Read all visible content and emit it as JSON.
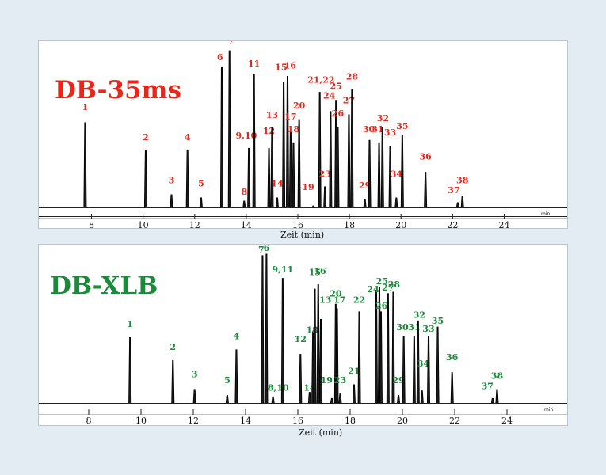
{
  "chart_data": [
    {
      "type": "line",
      "title": "DB-35ms",
      "title_color": "#e8271a",
      "label_color": "#e8271a",
      "xlabel": "Zeit (min)",
      "unit_label": "min",
      "xlim": [
        7.0,
        25.0
      ],
      "x_ticks": [
        8,
        10,
        12,
        14,
        16,
        18,
        20,
        22,
        24
      ],
      "x_tick_labels": [
        "8",
        "10",
        "12",
        "14",
        "16",
        "18",
        "20",
        "22",
        "24"
      ],
      "series": [
        {
          "peaks": [
            {
              "x": 7.75,
              "h": 0.53,
              "label": "1",
              "lx": 7.75,
              "lh": 0.61
            },
            {
              "x": 10.1,
              "h": 0.36,
              "label": "2",
              "lx": 10.1,
              "lh": 0.42
            },
            {
              "x": 11.1,
              "h": 0.08,
              "label": "3",
              "lx": 11.1,
              "lh": 0.15
            },
            {
              "x": 11.72,
              "h": 0.36,
              "label": "4",
              "lx": 11.72,
              "lh": 0.42
            },
            {
              "x": 12.25,
              "h": 0.06,
              "label": "5",
              "lx": 12.25,
              "lh": 0.13
            },
            {
              "x": 13.05,
              "h": 0.88,
              "label": "6",
              "lx": 12.98,
              "lh": 0.92
            },
            {
              "x": 13.35,
              "h": 0.98,
              "label": "7",
              "lx": 13.4,
              "lh": 1.02
            },
            {
              "x": 13.92,
              "h": 0.04,
              "label": "8",
              "lx": 13.92,
              "lh": 0.08
            },
            {
              "x": 14.1,
              "h": 0.37,
              "label": "9,10",
              "lx": 14.0,
              "lh": 0.43
            },
            {
              "x": 14.3,
              "h": 0.83,
              "label": "11",
              "lx": 14.3,
              "lh": 0.88
            },
            {
              "x": 14.88,
              "h": 0.37,
              "label": "12",
              "lx": 14.88,
              "lh": 0.46
            },
            {
              "x": 15.0,
              "h": 0.5,
              "label": "13",
              "lx": 15.0,
              "lh": 0.56
            },
            {
              "x": 15.2,
              "h": 0.06,
              "label": "14",
              "lx": 15.2,
              "lh": 0.13
            },
            {
              "x": 15.45,
              "h": 0.78,
              "label": "15",
              "lx": 15.35,
              "lh": 0.86
            },
            {
              "x": 15.6,
              "h": 0.82,
              "label": "16",
              "lx": 15.7,
              "lh": 0.87
            },
            {
              "x": 15.72,
              "h": 0.48,
              "label": "17",
              "lx": 15.72,
              "lh": 0.55
            },
            {
              "x": 15.83,
              "h": 0.4,
              "label": "18",
              "lx": 15.83,
              "lh": 0.47
            },
            {
              "x": 16.05,
              "h": 0.55,
              "label": "20",
              "lx": 16.05,
              "lh": 0.62
            },
            {
              "x": 16.6,
              "h": 0.01,
              "label": "19",
              "lx": 16.4,
              "lh": 0.11
            },
            {
              "x": 16.85,
              "h": 0.72,
              "label": "21,22",
              "lx": 16.9,
              "lh": 0.78
            },
            {
              "x": 17.05,
              "h": 0.13,
              "label": "23",
              "lx": 17.05,
              "lh": 0.19
            },
            {
              "x": 17.27,
              "h": 0.6,
              "label": "24",
              "lx": 17.22,
              "lh": 0.68
            },
            {
              "x": 17.48,
              "h": 0.67,
              "label": "25",
              "lx": 17.48,
              "lh": 0.74
            },
            {
              "x": 17.55,
              "h": 0.5,
              "label": "26",
              "lx": 17.55,
              "lh": 0.57
            },
            {
              "x": 17.98,
              "h": 0.58,
              "label": "27",
              "lx": 17.98,
              "lh": 0.65
            },
            {
              "x": 18.1,
              "h": 0.74,
              "label": "28",
              "lx": 18.1,
              "lh": 0.8
            },
            {
              "x": 18.6,
              "h": 0.05,
              "label": "29",
              "lx": 18.6,
              "lh": 0.12
            },
            {
              "x": 18.78,
              "h": 0.42,
              "label": "30",
              "lx": 18.75,
              "lh": 0.47
            },
            {
              "x": 19.15,
              "h": 0.4,
              "label": "31",
              "lx": 19.1,
              "lh": 0.47
            },
            {
              "x": 19.28,
              "h": 0.5,
              "label": "32",
              "lx": 19.3,
              "lh": 0.54
            },
            {
              "x": 19.58,
              "h": 0.38,
              "label": "33",
              "lx": 19.58,
              "lh": 0.45
            },
            {
              "x": 19.82,
              "h": 0.06,
              "label": "34",
              "lx": 19.82,
              "lh": 0.19
            },
            {
              "x": 20.05,
              "h": 0.45,
              "label": "35",
              "lx": 20.05,
              "lh": 0.49
            },
            {
              "x": 20.95,
              "h": 0.22,
              "label": "36",
              "lx": 20.95,
              "lh": 0.3
            },
            {
              "x": 22.2,
              "h": 0.03,
              "label": "37",
              "lx": 22.05,
              "lh": 0.09
            },
            {
              "x": 22.38,
              "h": 0.07,
              "label": "38",
              "lx": 22.38,
              "lh": 0.15
            }
          ]
        }
      ]
    },
    {
      "type": "line",
      "title": "DB-XLB",
      "title_color": "#1b8a3a",
      "label_color": "#1b8a3a",
      "xlabel": "Zeit (min)",
      "unit_label": "min",
      "xlim": [
        7.0,
        25.0
      ],
      "x_ticks": [
        8,
        10,
        12,
        14,
        16,
        18,
        20,
        22,
        24
      ],
      "x_tick_labels": [
        "8",
        "10",
        "12",
        "14",
        "16",
        "18",
        "20",
        "22",
        "24"
      ],
      "series": [
        {
          "peaks": [
            {
              "x": 9.58,
              "h": 0.43,
              "label": "1",
              "lx": 9.58,
              "lh": 0.5
            },
            {
              "x": 11.22,
              "h": 0.28,
              "label": "2",
              "lx": 11.22,
              "lh": 0.35
            },
            {
              "x": 12.05,
              "h": 0.09,
              "label": "3",
              "lx": 12.05,
              "lh": 0.17
            },
            {
              "x": 13.3,
              "h": 0.05,
              "label": "5",
              "lx": 13.3,
              "lh": 0.13
            },
            {
              "x": 13.65,
              "h": 0.35,
              "label": "4",
              "lx": 13.65,
              "lh": 0.42
            },
            {
              "x": 14.65,
              "h": 0.97,
              "label": "7",
              "lx": 14.6,
              "lh": 0.99
            },
            {
              "x": 14.8,
              "h": 0.98,
              "label": "6",
              "lx": 14.8,
              "lh": 1.0
            },
            {
              "x": 15.05,
              "h": 0.04,
              "label": "8,10",
              "lx": 15.25,
              "lh": 0.08
            },
            {
              "x": 15.42,
              "h": 0.82,
              "label": "9,11",
              "lx": 15.42,
              "lh": 0.86
            },
            {
              "x": 16.1,
              "h": 0.32,
              "label": "12",
              "lx": 16.1,
              "lh": 0.4
            },
            {
              "x": 16.45,
              "h": 0.07,
              "label": "14",
              "lx": 16.45,
              "lh": 0.08
            },
            {
              "x": 16.58,
              "h": 0.47,
              "label": "18",
              "lx": 16.55,
              "lh": 0.46
            },
            {
              "x": 16.65,
              "h": 0.75,
              "label": "15",
              "lx": 16.65,
              "lh": 0.84
            },
            {
              "x": 16.78,
              "h": 0.78,
              "label": "16",
              "lx": 16.85,
              "lh": 0.85
            },
            {
              "x": 16.88,
              "h": 0.55,
              "label": "13",
              "lx": 17.05,
              "lh": 0.66
            },
            {
              "x": 17.3,
              "h": 0.03,
              "label": "19",
              "lx": 17.1,
              "lh": 0.13
            },
            {
              "x": 17.45,
              "h": 0.65,
              "label": "20",
              "lx": 17.45,
              "lh": 0.7
            },
            {
              "x": 17.5,
              "h": 0.62,
              "label": "17",
              "lx": 17.6,
              "lh": 0.66
            },
            {
              "x": 17.62,
              "h": 0.06,
              "label": "23",
              "lx": 17.62,
              "lh": 0.13
            },
            {
              "x": 18.15,
              "h": 0.12,
              "label": "21",
              "lx": 18.15,
              "lh": 0.19
            },
            {
              "x": 18.35,
              "h": 0.6,
              "label": "22",
              "lx": 18.35,
              "lh": 0.66
            },
            {
              "x": 19.0,
              "h": 0.74,
              "label": "24",
              "lx": 18.88,
              "lh": 0.73
            },
            {
              "x": 19.12,
              "h": 0.76,
              "label": "25",
              "lx": 19.22,
              "lh": 0.78
            },
            {
              "x": 19.18,
              "h": 0.6,
              "label": "26",
              "lx": 19.2,
              "lh": 0.62
            },
            {
              "x": 19.45,
              "h": 0.72,
              "label": "27",
              "lx": 19.45,
              "lh": 0.74
            },
            {
              "x": 19.65,
              "h": 0.73,
              "label": "28",
              "lx": 19.68,
              "lh": 0.76
            },
            {
              "x": 19.85,
              "h": 0.05,
              "label": "29",
              "lx": 19.85,
              "lh": 0.13
            },
            {
              "x": 20.05,
              "h": 0.44,
              "label": "30",
              "lx": 20.0,
              "lh": 0.48
            },
            {
              "x": 20.45,
              "h": 0.44,
              "label": "31",
              "lx": 20.45,
              "lh": 0.48
            },
            {
              "x": 20.6,
              "h": 0.54,
              "label": "32",
              "lx": 20.65,
              "lh": 0.56
            },
            {
              "x": 20.75,
              "h": 0.08,
              "label": "34",
              "lx": 20.8,
              "lh": 0.24
            },
            {
              "x": 21.0,
              "h": 0.44,
              "label": "33",
              "lx": 21.0,
              "lh": 0.47
            },
            {
              "x": 21.35,
              "h": 0.5,
              "label": "35",
              "lx": 21.35,
              "lh": 0.52
            },
            {
              "x": 21.9,
              "h": 0.2,
              "label": "36",
              "lx": 21.9,
              "lh": 0.28
            },
            {
              "x": 23.45,
              "h": 0.03,
              "label": "37",
              "lx": 23.25,
              "lh": 0.09
            },
            {
              "x": 23.62,
              "h": 0.09,
              "label": "38",
              "lx": 23.62,
              "lh": 0.16
            }
          ]
        }
      ]
    }
  ]
}
